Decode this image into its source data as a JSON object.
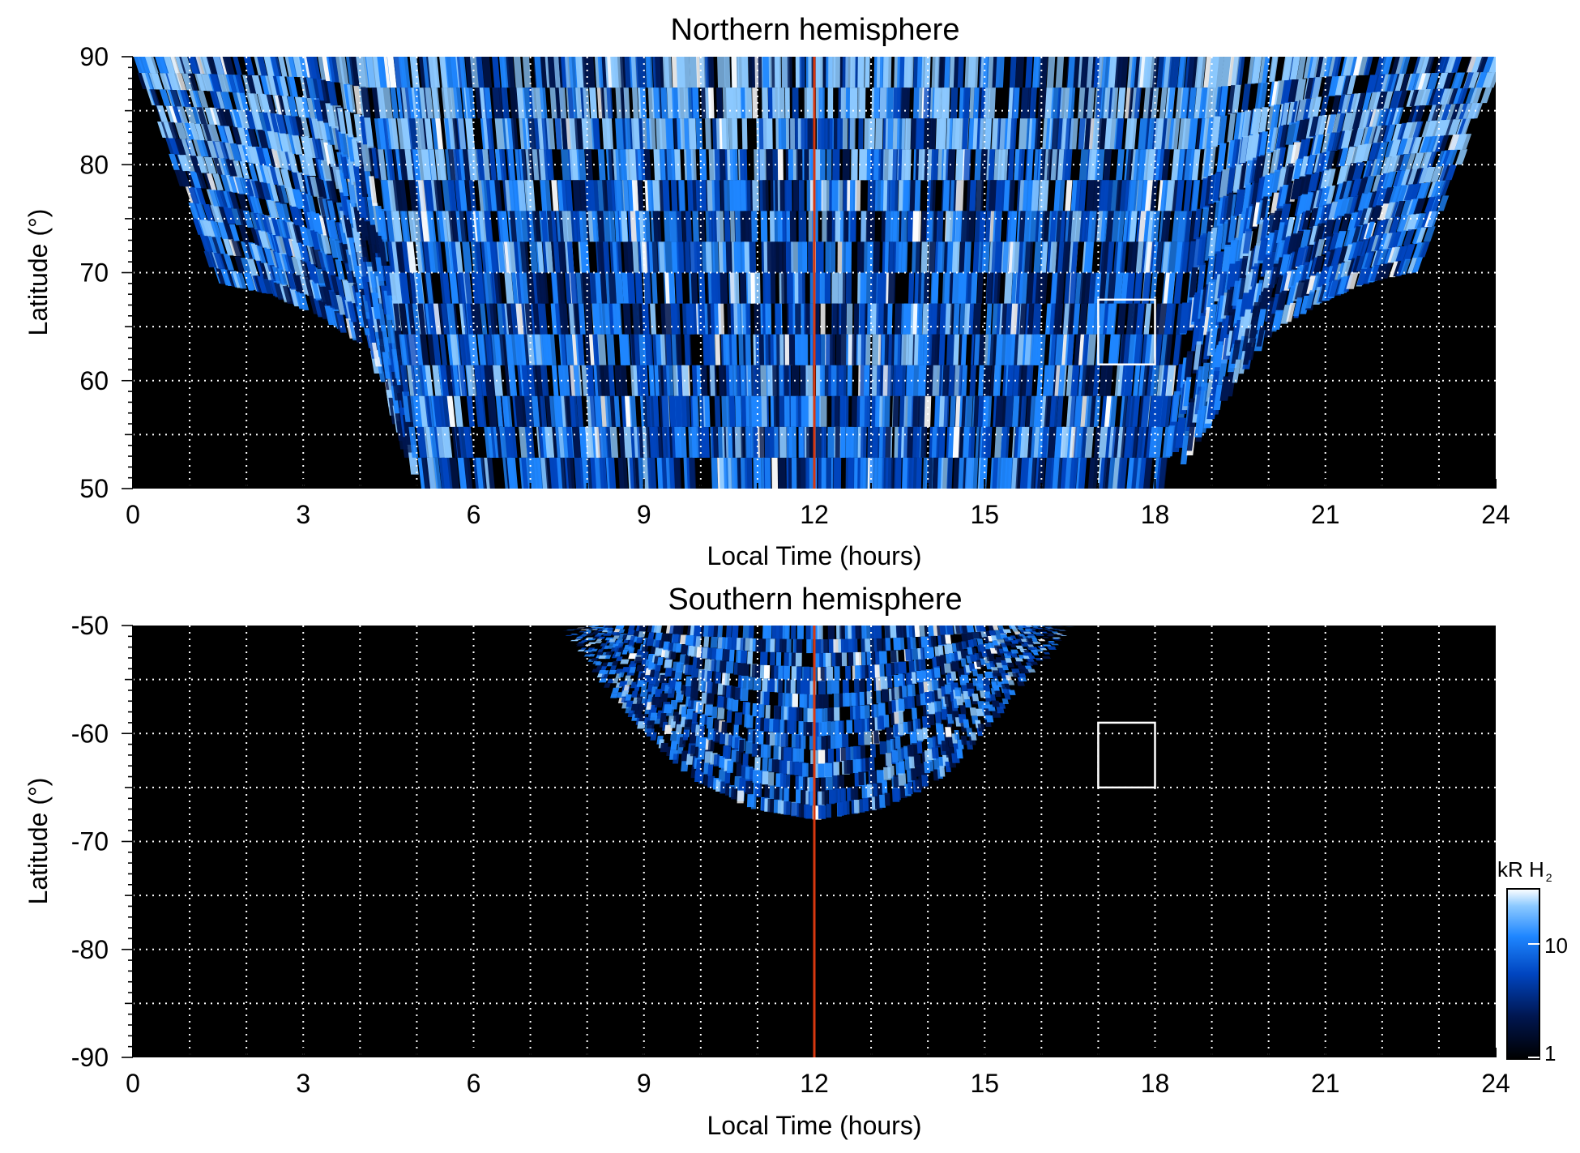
{
  "chart_data": [
    {
      "type": "heatmap",
      "title": "Northern hemisphere",
      "xlabel": "Local Time (hours)",
      "ylabel": "Latitude (°)",
      "xlim": [
        0,
        24
      ],
      "ylim": [
        50,
        90
      ],
      "x_ticks": [
        "0",
        "3",
        "6",
        "9",
        "12",
        "15",
        "18",
        "21",
        "24"
      ],
      "y_ticks": [
        "90",
        "80",
        "70",
        "60",
        "50"
      ],
      "grid": true,
      "coverage_edge": {
        "lt": [
          0,
          1,
          2,
          3,
          4,
          5,
          6,
          7,
          8,
          9,
          10,
          11,
          12,
          13,
          14,
          15,
          16,
          17,
          18,
          19,
          20,
          21,
          22,
          23,
          24
        ],
        "min_lat": [
          69,
          68,
          66,
          63,
          50,
          50,
          50,
          50,
          50,
          50,
          50,
          50,
          50,
          50,
          50,
          50,
          50,
          50,
          50,
          50,
          57,
          64,
          67,
          69,
          70
        ]
      },
      "marker_line_lt": 12,
      "box": {
        "lt": [
          17,
          18
        ],
        "lat": [
          61.5,
          67.5
        ]
      }
    },
    {
      "type": "heatmap",
      "title": "Southern hemisphere",
      "xlabel": "Local Time (hours)",
      "ylabel": "Latitude (°)",
      "xlim": [
        0,
        24
      ],
      "ylim": [
        -90,
        -50
      ],
      "x_ticks": [
        "0",
        "3",
        "6",
        "9",
        "12",
        "15",
        "18",
        "21",
        "24"
      ],
      "y_ticks": [
        "-50",
        "-60",
        "-70",
        "-80",
        "-90"
      ],
      "grid": true,
      "coverage_edge": {
        "lt": [
          8,
          9,
          10,
          11,
          12,
          13,
          14,
          15,
          16
        ],
        "max_depth_lat": [
          -50,
          -58,
          -64,
          -67,
          -68,
          -67,
          -64,
          -57,
          -50
        ]
      },
      "marker_line_lt": 12,
      "box": {
        "lt": [
          17,
          18
        ],
        "lat": [
          -65,
          -59
        ]
      }
    }
  ],
  "colorbar": {
    "title_main": "kR H",
    "title_sub": "2",
    "scale": "log",
    "ticks": [
      "10",
      "1"
    ],
    "colors": [
      "#000000",
      "#001650",
      "#0045c0",
      "#1e86ff",
      "#8cc9ff",
      "#ffffff"
    ]
  },
  "colors": {
    "marker_line": "#d8380f",
    "box": "#ffffff",
    "grid": "#ffffff",
    "background": "#000000"
  }
}
